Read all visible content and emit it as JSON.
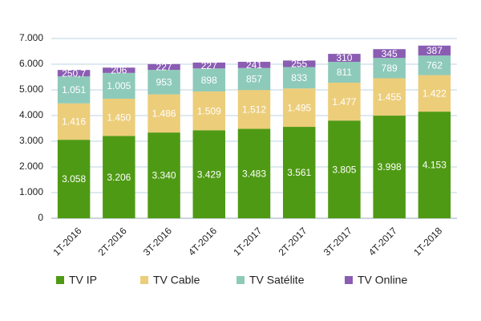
{
  "chart_data": {
    "type": "stacked_bar",
    "categories": [
      "1T-2016",
      "2T-2016",
      "3T-2016",
      "4T-2016",
      "1T-2017",
      "2T-2017",
      "3T-2017",
      "4T-2017",
      "1T-2018"
    ],
    "series": [
      {
        "name": "TV IP",
        "color": "#4f9a14",
        "values": [
          3058,
          3206,
          3340,
          3429,
          3483,
          3561,
          3805,
          3998,
          4153
        ],
        "value_labels": [
          "3.058",
          "3.206",
          "3.340",
          "3.429",
          "3.483",
          "3.561",
          "3.805",
          "3.998",
          "4.153"
        ]
      },
      {
        "name": "TV Cable",
        "color": "#eccd7a",
        "values": [
          1416,
          1450,
          1486,
          1509,
          1512,
          1495,
          1477,
          1455,
          1422
        ],
        "value_labels": [
          "1.416",
          "1.450",
          "1.486",
          "1.509",
          "1.512",
          "1.495",
          "1.477",
          "1.455",
          "1.422"
        ]
      },
      {
        "name": "TV Satélite",
        "color": "#8ecab9",
        "values": [
          1051,
          1005,
          953,
          898,
          857,
          833,
          811,
          789,
          762
        ],
        "value_labels": [
          "1.051",
          "1.005",
          "953",
          "898",
          "857",
          "833",
          "811",
          "789",
          "762"
        ]
      },
      {
        "name": "TV Online",
        "color": "#8a5db3",
        "values": [
          250.7,
          206,
          227,
          227,
          241,
          255,
          310,
          345,
          387
        ],
        "value_labels": [
          "250,7",
          "206",
          "227",
          "227",
          "241",
          "255",
          "310",
          "345",
          "387"
        ]
      }
    ],
    "ylim": [
      0,
      7000
    ],
    "yticks": [
      0,
      {
        "value": 1000,
        "label": "1.000"
      },
      {
        "value": 2000,
        "label": "2.000"
      },
      {
        "value": 3000,
        "label": "3.000"
      },
      {
        "value": 4000,
        "label": "4.000"
      },
      {
        "value": 5000,
        "label": "5.000"
      },
      {
        "value": 6000,
        "label": "6.000"
      },
      {
        "value": 7000,
        "label": "7.000"
      }
    ],
    "grid": true,
    "legend": "bottom"
  }
}
